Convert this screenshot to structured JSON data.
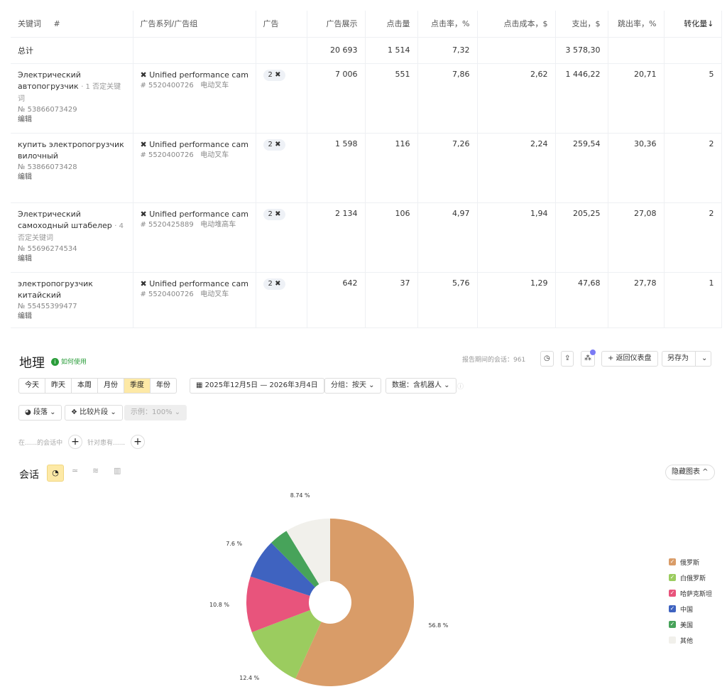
{
  "table": {
    "headers": [
      "关键词",
      "#",
      "广告系列/广告组",
      "广告",
      "广告展示",
      "点击量",
      "点击率，%",
      "点击成本，$",
      "支出，$",
      "跳出率，%",
      "转化量"
    ],
    "sort_indicator": "↓",
    "total": {
      "label": "总计",
      "impressions": "20 693",
      "clicks": "1 514",
      "ctr": "7,32",
      "spend": "3 578,30"
    },
    "rows": [
      {
        "keyword": "Электрический автопогрузчик",
        "neg": "· 1 否定关键词",
        "id": "№ 53866073429",
        "edit": "编辑",
        "campaign": "Unified performance campa",
        "group_id": "# 5520400726",
        "group": "电动叉车",
        "ads": "2",
        "impressions": "7 006",
        "clicks": "551",
        "ctr": "7,86",
        "cpc": "2,62",
        "spend": "1 446,22",
        "bounce": "20,71",
        "conv": "5"
      },
      {
        "keyword": "купить электропогрузчик вилочный",
        "neg": "",
        "id": "№ 53866073428",
        "edit": "编辑",
        "campaign": "Unified performance campa",
        "group_id": "# 5520400726",
        "group": "电动叉车",
        "ads": "2",
        "impressions": "1 598",
        "clicks": "116",
        "ctr": "7,26",
        "cpc": "2,24",
        "spend": "259,54",
        "bounce": "30,36",
        "conv": "2"
      },
      {
        "keyword": "Электрический самоходный штабелер",
        "neg": "· 4 否定关键词",
        "id": "№ 55696274534",
        "edit": "编辑",
        "campaign": "Unified performance campa",
        "group_id": "# 5520425889",
        "group": "电动堆高车",
        "ads": "2",
        "impressions": "2 134",
        "clicks": "106",
        "ctr": "4,97",
        "cpc": "1,94",
        "spend": "205,25",
        "bounce": "27,08",
        "conv": "2"
      },
      {
        "keyword": "электропогрузчик китайский",
        "neg": "",
        "id": "№ 55455399477",
        "edit": "编辑",
        "campaign": "Unified performance campa",
        "group_id": "# 5520400726",
        "group": "电动叉车",
        "ads": "2",
        "impressions": "642",
        "clicks": "37",
        "ctr": "5,76",
        "cpc": "1,29",
        "spend": "47,68",
        "bounce": "27,78",
        "conv": "1"
      }
    ]
  },
  "report": {
    "title": "地理",
    "howto": "如何使用",
    "sessions": "报告期间的会话：961",
    "back": "返回仪表盘",
    "save_as": "另存为",
    "periods": [
      "今天",
      "昨天",
      "本周",
      "月份",
      "季度",
      "年份"
    ],
    "date_range": "2025年12月5日 — 2026年3月4日",
    "group": "分组：按天",
    "data": "数据：含机器人",
    "segment": "段落",
    "compare": "比较片段",
    "sample": "示例：100%",
    "filter1": "在......的会话中",
    "filter2": "针对患有......",
    "metric": "会话",
    "hide_chart": "隐藏图表"
  },
  "chart_data": {
    "type": "pie",
    "donut": true,
    "categories": [
      "俄罗斯",
      "白俄罗斯",
      "哈萨克斯坦",
      "中国",
      "美国",
      "其他"
    ],
    "values": [
      56.8,
      12.4,
      10.8,
      7.6,
      3.66,
      8.74
    ],
    "labels": [
      "56.8 %",
      "12.4 %",
      "10.8 %",
      "7.6 %",
      "",
      "8.74 %"
    ],
    "colors": [
      "#d99c68",
      "#9bcc5f",
      "#e8547c",
      "#3f63c0",
      "#47a35a",
      "#f1f0eb"
    ],
    "legend_position": "right"
  }
}
